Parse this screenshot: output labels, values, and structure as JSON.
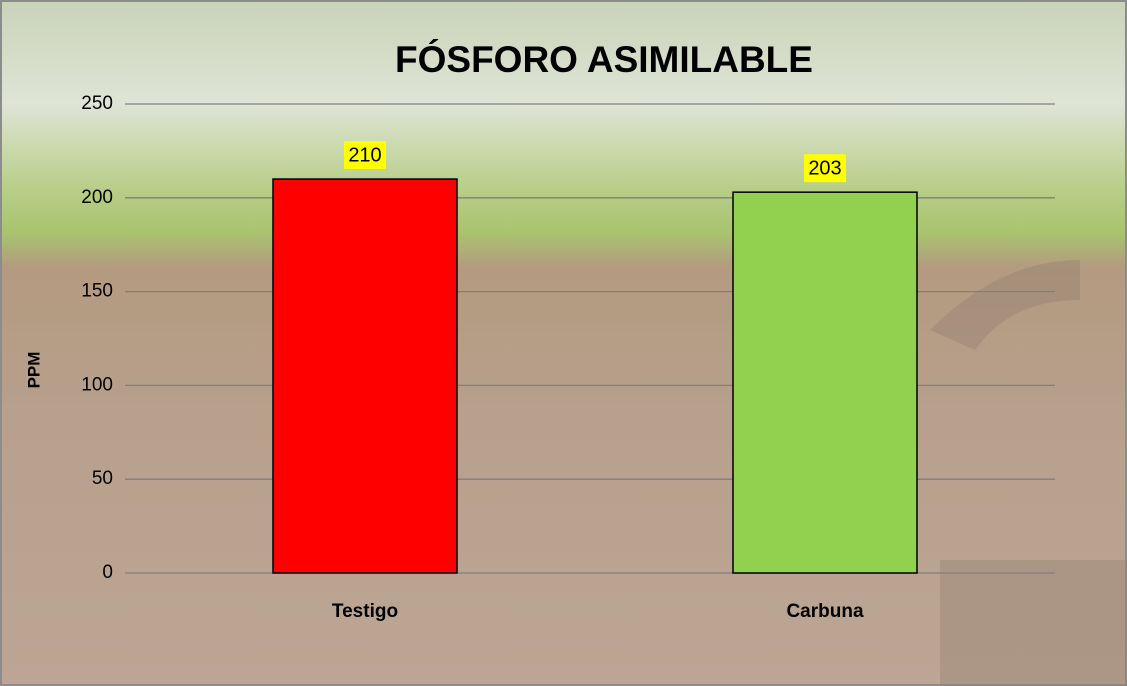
{
  "chart_data": {
    "type": "bar",
    "title": "FÓSFORO ASIMILABLE",
    "y_label": "PPM",
    "categories": [
      "Testigo",
      "Carbuna"
    ],
    "values": [
      210,
      203
    ],
    "colors": [
      "#ff0000",
      "#92d050"
    ],
    "ylim": [
      0,
      250
    ],
    "yticks": [
      0,
      50,
      100,
      150,
      200,
      250
    ],
    "grid": true,
    "label_background": "#ffff00"
  }
}
